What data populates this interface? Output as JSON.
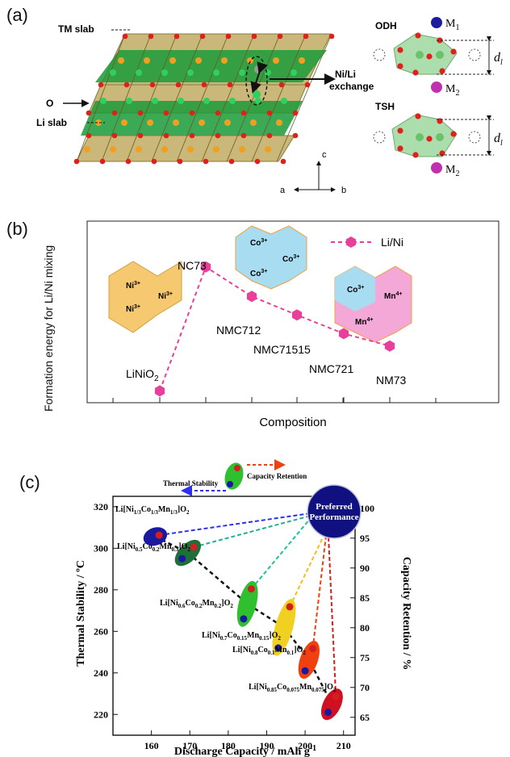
{
  "panel_labels": [
    "(a)",
    "(b)",
    "(c)"
  ],
  "panel_a": {
    "labels": {
      "tm_slab": "TM slab",
      "o": "O",
      "li_slab": "Li slab",
      "exchange_1": "Ni/Li",
      "exchange_2": "exchange",
      "odh": "ODH",
      "tsh": "TSH",
      "m1": "M",
      "m1_sub": "1",
      "m2": "M",
      "m2_sub": "2",
      "m2b": "M",
      "m2b_sub": "2",
      "dl": "d",
      "dl_sub": "l",
      "dl2": "d",
      "dl2_sub": "l",
      "axis_c": "c",
      "axis_a": "a",
      "axis_b": "b"
    },
    "colors": {
      "slab_green": "#1a9a3a",
      "slab_tan": "#c9b879",
      "oxygen": "#e0201a",
      "tm": "#f0a020",
      "li": "#2fd060",
      "m1": "#1c1ca0",
      "m2": "#c030b0"
    }
  },
  "chart_data": [
    {
      "type": "line",
      "title": "",
      "xlabel": "Composition",
      "ylabel": "Formation energy for Li/Ni mixing",
      "categories": [
        "LiNiO2",
        "NC73",
        "NMC712",
        "NMC71515",
        "NMC721",
        "NM73"
      ],
      "series": [
        {
          "name": "Li/Ni",
          "values": [
            0.05,
            0.85,
            0.66,
            0.54,
            0.42,
            0.34
          ],
          "color": "#e8409a",
          "marker": "hexagon",
          "line": "dashed"
        }
      ],
      "ylim": [
        0,
        1
      ],
      "grid": false,
      "legend": "top-right",
      "point_labels": {
        "LiNiO2": "LiNiO",
        "LiNiO2_sub": "2",
        "NC73": "NC73",
        "NMC712": "NMC712",
        "NMC71515": "NMC71515",
        "NMC721": "NMC721",
        "NM73": "NM73"
      },
      "insets": {
        "ni_labels": [
          "Ni",
          "Ni",
          "Ni"
        ],
        "co_labels": [
          "Co",
          "Co",
          "Co"
        ],
        "mix_labels": [
          "Co",
          "Mn",
          "Mn"
        ],
        "sup3": "3+",
        "sup4": "4+"
      }
    },
    {
      "type": "scatter",
      "title": "",
      "xlabel": "Discharge Capacity / mAh g",
      "xlabel_sup": "-1",
      "ylabel_left": "Thermal Stability / ºC",
      "ylabel_right": "Capacity Retention / %",
      "xlim": [
        150,
        213
      ],
      "ylim_left": [
        210,
        325
      ],
      "ylim_right": [
        62,
        102
      ],
      "xticks": [
        160,
        170,
        180,
        190,
        200,
        210
      ],
      "yticks_left": [
        220,
        240,
        260,
        280,
        300,
        320
      ],
      "yticks_right": [
        65,
        70,
        75,
        80,
        85,
        90,
        95,
        100
      ],
      "grid": false,
      "series": [
        {
          "name": "Thermal Stability",
          "color": "#2f2ff0",
          "points": [
            {
              "x": 160,
              "y": 305
            },
            {
              "x": 168,
              "y": 295
            },
            {
              "x": 184,
              "y": 266
            },
            {
              "x": 193,
              "y": 252
            },
            {
              "x": 200,
              "y": 241
            },
            {
              "x": 206,
              "y": 221
            }
          ]
        },
        {
          "name": "Capacity Retention",
          "color": "#d02020",
          "points": [
            {
              "x": 162,
              "y": 95.5
            },
            {
              "x": 171,
              "y": 93.5
            },
            {
              "x": 186,
              "y": 86.5
            },
            {
              "x": 196,
              "y": 83.5
            },
            {
              "x": 202,
              "y": 76.5
            },
            {
              "x": 208,
              "y": 68.5
            }
          ]
        }
      ],
      "materials": [
        {
          "base": "Li[Ni",
          "s1": "1/3",
          "m2": "Co",
          "s2": "1/3",
          "m3": "Mn",
          "s3": "1/3",
          "end": "]O",
          "s4": "2",
          "color": "#1a1aa0"
        },
        {
          "base": "Li[Ni",
          "s1": "0.5",
          "m2": "Co",
          "s2": "0.2",
          "m3": "Mn",
          "s3": "0.3",
          "end": "]O",
          "s4": "2",
          "color": "#1f6f3a"
        },
        {
          "base": "Li[Ni",
          "s1": "0.6",
          "m2": "Co",
          "s2": "0.2",
          "m3": "Mn",
          "s3": "0.2",
          "end": "]O",
          "s4": "2",
          "color": "#2fc030"
        },
        {
          "base": "Li[Ni",
          "s1": "0.7",
          "m2": "Co",
          "s2": "0.15",
          "m3": "Mn",
          "s3": "0.15",
          "end": "]O",
          "s4": "2",
          "color": "#f0d020"
        },
        {
          "base": "Li[Ni",
          "s1": "0.8",
          "m2": "Co",
          "s2": "0.1",
          "m3": "Mn",
          "s3": "0.1",
          "end": "]O",
          "s4": "2",
          "color": "#f04010"
        },
        {
          "base": "Li[Ni",
          "s1": "0.85",
          "m2": "Co",
          "s2": "0.075",
          "m3": "Mn",
          "s3": "0.075",
          "end": "]O",
          "s4": "2",
          "color": "#d01020"
        }
      ],
      "preferred": {
        "line1": "Preferred",
        "line2": "Performance",
        "color": "#101080"
      },
      "legend_labels": {
        "thermal": "Thermal Stability",
        "retention": "Capacity Retention"
      }
    }
  ]
}
